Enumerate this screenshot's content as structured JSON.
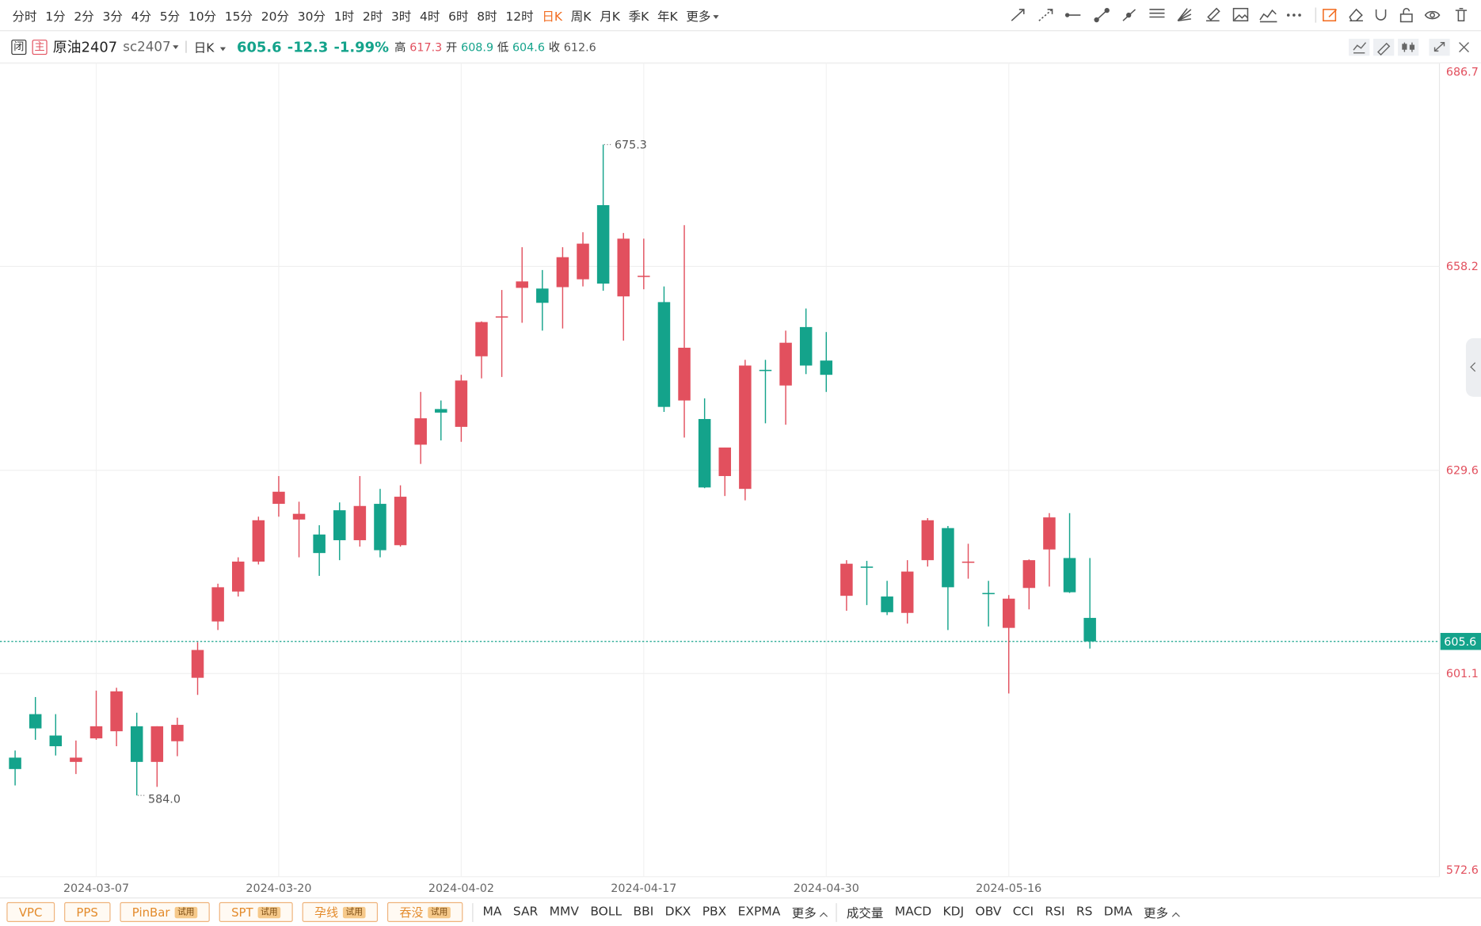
{
  "toolbar": {
    "periods": [
      "分时",
      "1分",
      "2分",
      "3分",
      "4分",
      "5分",
      "10分",
      "15分",
      "20分",
      "30分",
      "1时",
      "2时",
      "3时",
      "4时",
      "6时",
      "8时",
      "12时",
      "日K",
      "周K",
      "月K",
      "季K",
      "年K"
    ],
    "more": "更多"
  },
  "header": {
    "badges": [
      "闭",
      "主"
    ],
    "name": "原油2407",
    "code": "sc2407",
    "period": "日K",
    "price": 605.6,
    "change": -12.3,
    "change_pct": "-1.99%",
    "stats": [
      {
        "label": "高",
        "value": 617.3
      },
      {
        "label": "开",
        "value": 608.9
      },
      {
        "label": "低",
        "value": 604.6
      },
      {
        "label": "收",
        "value": 612.6
      }
    ]
  },
  "indicators": {
    "patterns": [
      {
        "name": "VPC"
      },
      {
        "name": "PPS"
      },
      {
        "name": "PinBar",
        "tag": "试用"
      },
      {
        "name": "SPT",
        "tag": "试用"
      },
      {
        "name": "孕线",
        "tag": "试用"
      },
      {
        "name": "吞没",
        "tag": "试用"
      }
    ],
    "main": [
      "MA",
      "SAR",
      "MMV",
      "BOLL",
      "BBI",
      "DKX",
      "PBX",
      "EXPMA"
    ],
    "main_more": "更多",
    "sub": [
      "成交量",
      "MACD",
      "KDJ",
      "OBV",
      "CCI",
      "RSI",
      "RS",
      "DMA"
    ],
    "sub_more": "更多"
  },
  "chart_data": {
    "type": "candlestick",
    "up_color": "#e2505e",
    "down_color": "#14a38b",
    "grid": true,
    "categories": [
      null,
      null,
      null,
      null,
      "2024-03-07",
      null,
      null,
      null,
      null,
      null,
      null,
      null,
      null,
      "2024-03-20",
      null,
      null,
      null,
      null,
      null,
      null,
      null,
      null,
      "2024-04-02",
      null,
      null,
      null,
      null,
      null,
      null,
      null,
      null,
      "2024-04-17",
      null,
      null,
      null,
      null,
      null,
      null,
      null,
      null,
      "2024-04-30",
      null,
      null,
      null,
      null,
      null,
      null,
      null,
      null,
      "2024-05-16",
      null,
      null,
      null,
      null
    ],
    "open": [
      589.3,
      595.4,
      592.4,
      588.7,
      592.0,
      593.0,
      593.7,
      588.7,
      591.6,
      600.5,
      608.4,
      612.6,
      616.8,
      624.9,
      622.7,
      620.6,
      624.0,
      619.8,
      624.9,
      619.1,
      633.2,
      638.2,
      635.7,
      645.6,
      651.1,
      655.2,
      655.1,
      655.3,
      656.4,
      666.8,
      654.0,
      656.8,
      653.2,
      639.4,
      636.8,
      628.8,
      627.0,
      643.7,
      641.5,
      649.7,
      645.0,
      612.0,
      616.1,
      611.9,
      609.6,
      617.0,
      621.5,
      616.7,
      612.4,
      607.5,
      613.1,
      618.5,
      617.3,
      608.9
    ],
    "high": [
      590.3,
      597.8,
      595.4,
      591.7,
      598.7,
      599.1,
      595.6,
      593.7,
      594.9,
      605.5,
      613.7,
      617.4,
      623.1,
      628.8,
      625.2,
      621.9,
      625.1,
      628.8,
      627.0,
      627.5,
      640.6,
      639.4,
      643.0,
      650.5,
      654.9,
      660.9,
      657.7,
      660.9,
      663.0,
      675.3,
      662.9,
      662.1,
      655.4,
      664.0,
      639.7,
      632.8,
      645.1,
      645.1,
      649.2,
      652.3,
      649.0,
      617.0,
      616.9,
      614.1,
      617.0,
      622.9,
      621.8,
      619.3,
      614.1,
      612.1,
      617.1,
      623.6,
      623.6,
      617.3
    ],
    "low": [
      585.4,
      591.8,
      589.6,
      587.0,
      591.8,
      590.9,
      584.0,
      585.2,
      589.5,
      598.1,
      607.2,
      611.9,
      616.4,
      623.1,
      617.4,
      614.8,
      617.0,
      618.9,
      617.4,
      618.9,
      630.5,
      633.8,
      633.6,
      642.5,
      642.7,
      650.3,
      649.2,
      649.5,
      655.4,
      654.8,
      647.8,
      655.0,
      637.8,
      634.2,
      627.1,
      626.0,
      625.4,
      636.2,
      636.0,
      643.1,
      640.6,
      609.9,
      610.7,
      609.3,
      608.1,
      616.1,
      607.2,
      614.4,
      607.7,
      598.3,
      610.1,
      613.3,
      612.4,
      604.6
    ],
    "close": [
      587.7,
      593.4,
      590.9,
      589.3,
      593.7,
      598.6,
      588.7,
      593.7,
      593.9,
      604.4,
      613.2,
      616.8,
      622.6,
      626.6,
      623.5,
      618.0,
      619.8,
      624.6,
      618.4,
      625.9,
      636.9,
      637.7,
      642.2,
      650.4,
      651.2,
      656.1,
      653.1,
      659.5,
      661.4,
      655.8,
      662.1,
      656.9,
      638.5,
      646.8,
      627.2,
      632.8,
      644.3,
      643.6,
      647.5,
      644.3,
      643.0,
      616.5,
      616.0,
      609.7,
      615.4,
      622.6,
      613.2,
      616.8,
      612.3,
      611.6,
      617.0,
      623.0,
      612.5,
      605.6
    ],
    "high_labels": [
      null,
      null,
      null,
      null,
      null,
      null,
      null,
      null,
      null,
      null,
      null,
      null,
      null,
      null,
      null,
      null,
      null,
      null,
      null,
      null,
      null,
      null,
      null,
      null,
      null,
      null,
      null,
      null,
      null,
      "675.3",
      null,
      null,
      null,
      null,
      null,
      null,
      null,
      null,
      null,
      null,
      null,
      null,
      null,
      null,
      null,
      null,
      null,
      null,
      null,
      null,
      null,
      null,
      null,
      null
    ],
    "low_labels": [
      null,
      null,
      null,
      null,
      null,
      null,
      "584.0",
      null,
      null,
      null,
      null,
      null,
      null,
      null,
      null,
      null,
      null,
      null,
      null,
      null,
      null,
      null,
      null,
      null,
      null,
      null,
      null,
      null,
      null,
      null,
      null,
      null,
      null,
      null,
      null,
      null,
      null,
      null,
      null,
      null,
      null,
      null,
      null,
      null,
      null,
      null,
      null,
      null,
      null,
      null,
      null,
      null,
      null,
      null
    ],
    "last_price": 605.6,
    "ylim": [
      572.6,
      686.7
    ],
    "yticks": [
      686.7,
      658.2,
      629.6,
      601.1,
      572.6
    ]
  }
}
